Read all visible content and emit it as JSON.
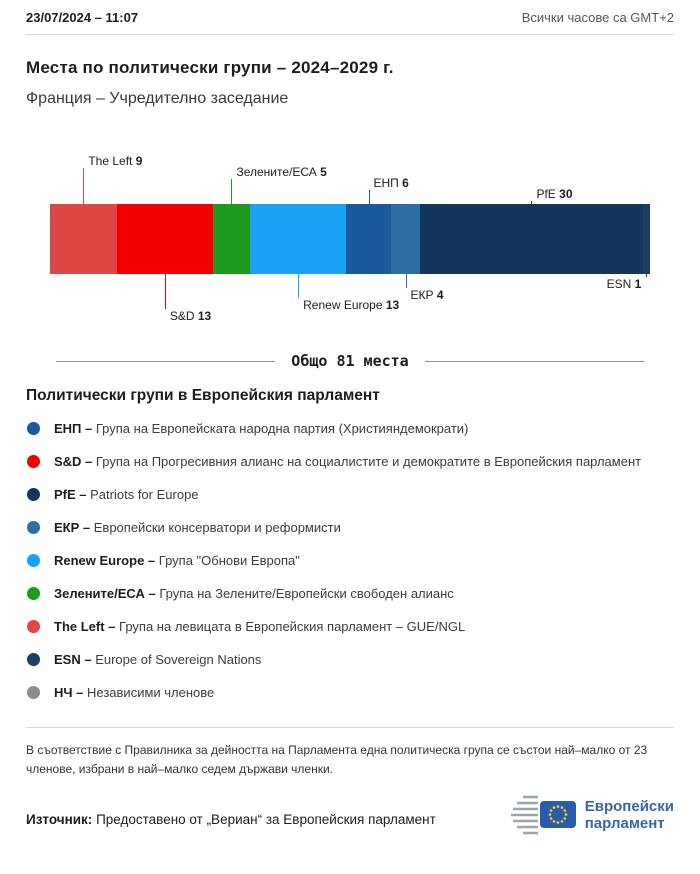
{
  "header": {
    "datetime": "23/07/2024 – 11:07",
    "timezone_note": "Всички часове са GMT+2"
  },
  "title": "Места по политически групи – 2024–2029 г.",
  "subtitle": "Франция – Учредително заседание",
  "chart_data": {
    "type": "stacked-bar",
    "unit": "seats",
    "total": 81,
    "total_label": "Общо 81 места",
    "groups": [
      {
        "id": "the-left",
        "name": "The Left",
        "seats": 9,
        "color": "#df4747",
        "label_side": "above",
        "tier": 3
      },
      {
        "id": "sd",
        "name": "S&D",
        "seats": 13,
        "color": "#f30000",
        "label_side": "below",
        "tier": 3
      },
      {
        "id": "greens-efa",
        "name": "Зелените/ЕСА",
        "seats": 5,
        "color": "#20991f",
        "label_side": "above",
        "tier": 2
      },
      {
        "id": "renew",
        "name": "Renew Europe",
        "seats": 13,
        "color": "#19a2f7",
        "label_side": "below",
        "tier": 2
      },
      {
        "id": "epp",
        "name": "ЕНП",
        "seats": 6,
        "color": "#1a5a9c",
        "label_side": "above",
        "tier": 1
      },
      {
        "id": "ecr",
        "name": "ЕКР",
        "seats": 4,
        "color": "#2e6da6",
        "label_side": "below",
        "tier": 1
      },
      {
        "id": "pfe",
        "name": "PfE",
        "seats": 30,
        "color": "#12365c",
        "label_side": "above",
        "tier": 0
      },
      {
        "id": "esn",
        "name": "ESN",
        "seats": 1,
        "color": "#1d3f66",
        "label_side": "below",
        "tier": 0,
        "align": "right"
      }
    ]
  },
  "legend": {
    "heading": "Политически групи в Европейския парламент",
    "items": [
      {
        "abbr": "ЕНП –",
        "desc": "Група на Европейската народна партия (Християндемократи)",
        "color": "#1a5a9c"
      },
      {
        "abbr": "S&D –",
        "desc": "Група на Прогресивния алианс на социалистите и демократите в Европейския парламент",
        "color": "#f30000"
      },
      {
        "abbr": "PfE –",
        "desc": "Patriots for Europe",
        "color": "#12365c"
      },
      {
        "abbr": "ЕКР –",
        "desc": "Европейски консерватори и реформисти",
        "color": "#2e6da6"
      },
      {
        "abbr": "Renew Europe –",
        "desc": "Група \"Обнови Европа\"",
        "color": "#19a2f7"
      },
      {
        "abbr": "Зелените/ЕСА –",
        "desc": "Група на Зелените/Европейски свободен алианс",
        "color": "#20991f"
      },
      {
        "abbr": "The Left –",
        "desc": "Група на левицата в Европейския парламент – GUE/NGL",
        "color": "#df4747"
      },
      {
        "abbr": "ESN –",
        "desc": "Europe of Sovereign Nations",
        "color": "#1d3f66"
      },
      {
        "abbr": "НЧ –",
        "desc": "Независими членове",
        "color": "#8e8e8e"
      }
    ]
  },
  "footnote": "В съответствие с Правилника за дейността на Парламента една политическа група се състои най–малко от 23 членове, избрани в най–малко седем държави членки.",
  "source": {
    "label": "Източник:",
    "text": "Предоставено от „Вериан“ за Европейския парламент"
  },
  "logo": {
    "line1": "Европейски",
    "line2": "парламент"
  }
}
